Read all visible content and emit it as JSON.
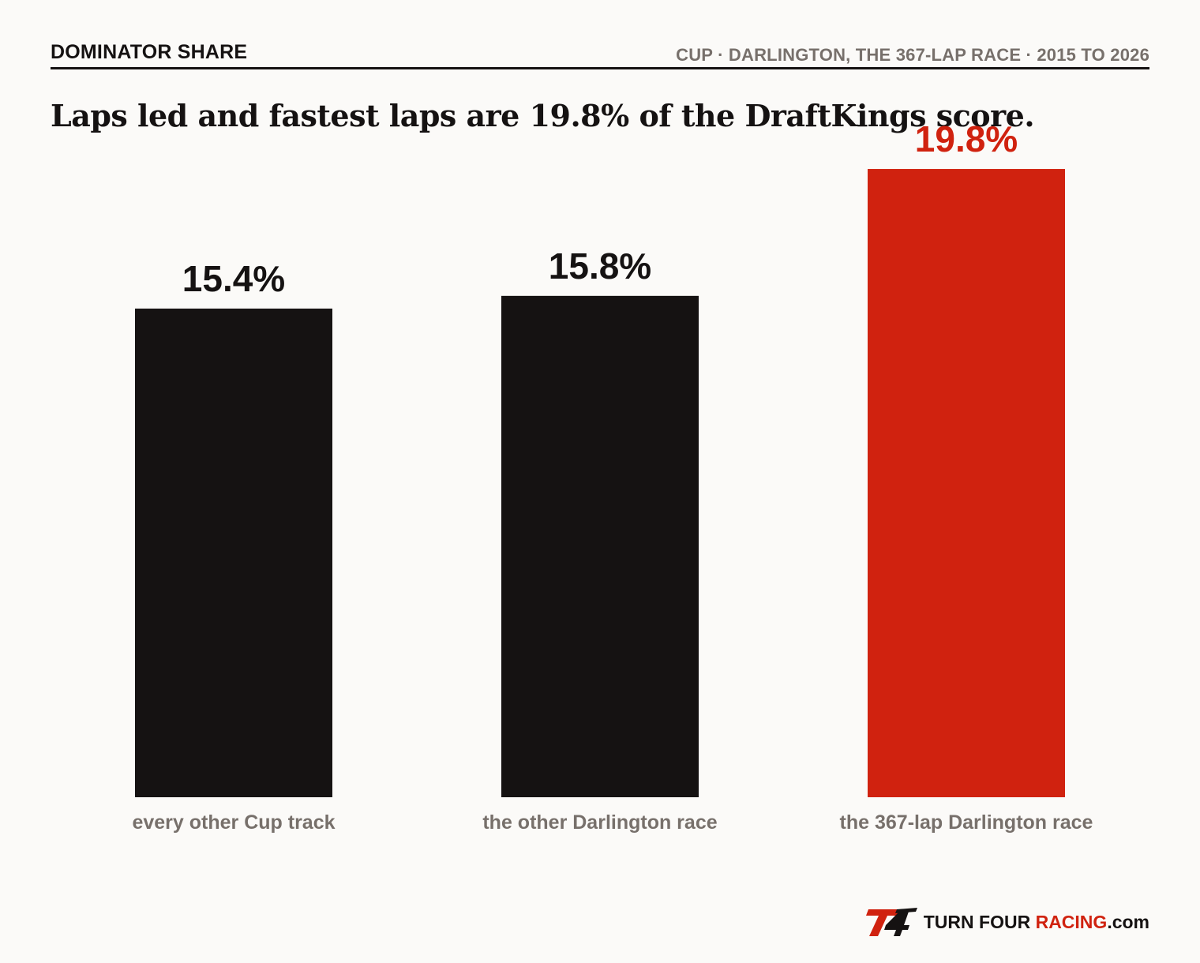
{
  "header": {
    "kicker": "DOMINATOR SHARE",
    "context": "CUP · DARLINGTON, THE 367-LAP RACE · 2015 TO 2026",
    "headline": "Laps led and fastest laps are 19.8% of the DraftKings score."
  },
  "chart_data": {
    "type": "bar",
    "categories": [
      "every other Cup track",
      "the other Darlington race",
      "the 367-lap Darlington race"
    ],
    "values": [
      15.4,
      15.8,
      19.8
    ],
    "value_labels": [
      "15.4%",
      "15.8%",
      "19.8%"
    ],
    "highlight_index": 2,
    "ylim": [
      0,
      20
    ],
    "grid": false,
    "colors": {
      "default": "#151212",
      "highlight": "#d0220f",
      "category_label": "#77706b"
    }
  },
  "brand": {
    "logo_icon": "t4-logo-icon",
    "name_main": "TURN FOUR ",
    "name_accent": "RACING",
    "name_suffix": ".com"
  }
}
